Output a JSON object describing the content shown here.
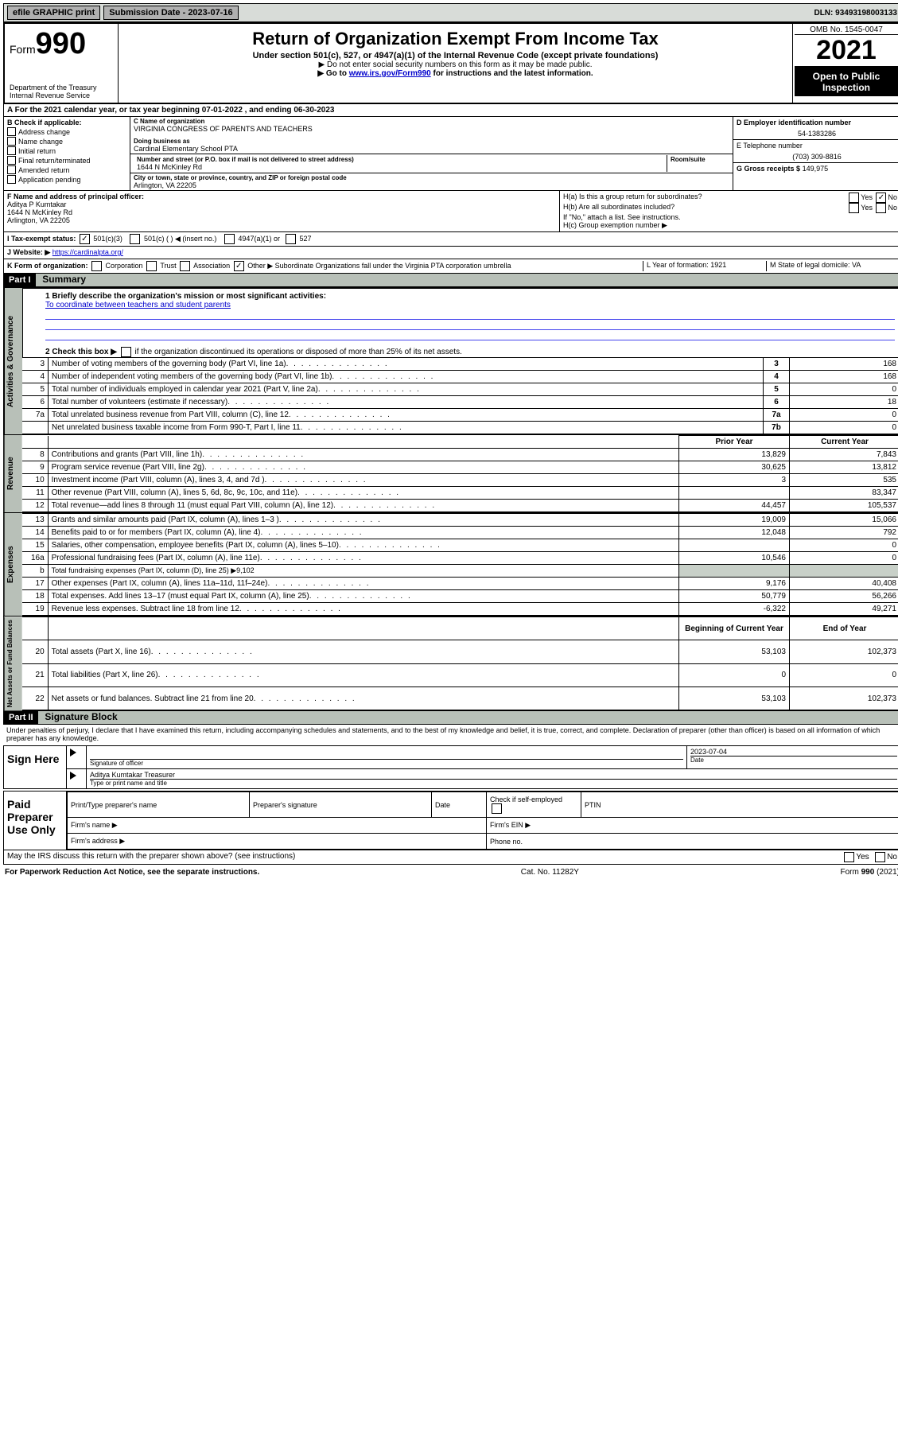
{
  "topbar": {
    "efile": "efile GRAPHIC print",
    "subdate_label": "Submission Date - 2023-07-16",
    "dln": "DLN: 93493198003133"
  },
  "header": {
    "form_word": "Form",
    "form_no": "990",
    "dept": "Department of the Treasury Internal Revenue Service",
    "title": "Return of Organization Exempt From Income Tax",
    "sub1": "Under section 501(c), 527, or 4947(a)(1) of the Internal Revenue Code (except private foundations)",
    "sub2": "▶ Do not enter social security numbers on this form as it may be made public.",
    "sub3_a": "▶ Go to ",
    "sub3_link": "www.irs.gov/Form990",
    "sub3_b": " for instructions and the latest information.",
    "omb": "OMB No. 1545-0047",
    "year": "2021",
    "pub": "Open to Public Inspection"
  },
  "rowA": "A For the 2021 calendar year, or tax year beginning 07-01-2022   , and ending 06-30-2023",
  "blockB": {
    "label": "B Check if applicable:",
    "opts": [
      "Address change",
      "Name change",
      "Initial return",
      "Final return/terminated",
      "Amended return",
      "Application pending"
    ],
    "c_label": "C Name of organization",
    "c_name": "VIRGINIA CONGRESS OF PARENTS AND TEACHERS",
    "dba_label": "Doing business as",
    "dba": "Cardinal Elementary School PTA",
    "addr_label": "Number and street (or P.O. box if mail is not delivered to street address)",
    "room": "Room/suite",
    "addr": "1644 N McKinley Rd",
    "city_label": "City or town, state or province, country, and ZIP or foreign postal code",
    "city": "Arlington, VA  22205",
    "d_label": "D Employer identification number",
    "d_val": "54-1383286",
    "e_label": "E Telephone number",
    "e_val": "(703) 309-8816",
    "g_label": "G Gross receipts $",
    "g_val": "149,975"
  },
  "rowF": {
    "f_label": "F Name and address of principal officer:",
    "f_name": "Aditya P Kumtakar",
    "f_addr": "1644 N McKinley Rd",
    "f_city": "Arlington, VA  22205",
    "ha": "H(a)  Is this a group return for subordinates?",
    "hb": "H(b)  Are all subordinates included?",
    "hb_note": "If \"No,\" attach a list. See instructions.",
    "hc": "H(c)  Group exemption number ▶",
    "yes": "Yes",
    "no": "No"
  },
  "rowI": {
    "label": "I    Tax-exempt status:",
    "o1": "501(c)(3)",
    "o2": "501(c) (  ) ◀ (insert no.)",
    "o3": "4947(a)(1) or",
    "o4": "527"
  },
  "rowJ": {
    "label": "J   Website: ▶",
    "url": "https://cardinalpta.org/"
  },
  "rowK": {
    "label": "K Form of organization:",
    "o1": "Corporation",
    "o2": "Trust",
    "o3": "Association",
    "o4": "Other ▶",
    "o4_desc": "Subordinate Organizations fall under the Virginia PTA corporation umbrella",
    "l": "L Year of formation: 1921",
    "m": "M State of legal domicile: VA"
  },
  "part1": {
    "hdr": "Part I",
    "title": "Summary",
    "q1": "1  Briefly describe the organization's mission or most significant activities:",
    "q1_ans": "To coordinate between teachers and student parents",
    "q2": "2   Check this box ▶",
    "q2b": "if the organization discontinued its operations or disposed of more than 25% of its net assets.",
    "rows_gov": [
      {
        "n": "3",
        "t": "Number of voting members of the governing body (Part VI, line 1a)",
        "l": "3",
        "v": "168"
      },
      {
        "n": "4",
        "t": "Number of independent voting members of the governing body (Part VI, line 1b)",
        "l": "4",
        "v": "168"
      },
      {
        "n": "5",
        "t": "Total number of individuals employed in calendar year 2021 (Part V, line 2a)",
        "l": "5",
        "v": "0"
      },
      {
        "n": "6",
        "t": "Total number of volunteers (estimate if necessary)",
        "l": "6",
        "v": "18"
      },
      {
        "n": "7a",
        "t": "Total unrelated business revenue from Part VIII, column (C), line 12",
        "l": "7a",
        "v": "0"
      },
      {
        "n": "",
        "t": "Net unrelated business taxable income from Form 990-T, Part I, line 11",
        "l": "7b",
        "v": "0"
      }
    ],
    "hdr_prior": "Prior Year",
    "hdr_curr": "Current Year",
    "tab_gov": "Activities & Governance",
    "tab_rev": "Revenue",
    "tab_exp": "Expenses",
    "tab_net": "Net Assets or Fund Balances",
    "rev": [
      {
        "n": "8",
        "t": "Contributions and grants (Part VIII, line 1h)",
        "p": "13,829",
        "c": "7,843"
      },
      {
        "n": "9",
        "t": "Program service revenue (Part VIII, line 2g)",
        "p": "30,625",
        "c": "13,812"
      },
      {
        "n": "10",
        "t": "Investment income (Part VIII, column (A), lines 3, 4, and 7d )",
        "p": "3",
        "c": "535"
      },
      {
        "n": "11",
        "t": "Other revenue (Part VIII, column (A), lines 5, 6d, 8c, 9c, 10c, and 11e)",
        "p": "",
        "c": "83,347"
      },
      {
        "n": "12",
        "t": "Total revenue—add lines 8 through 11 (must equal Part VIII, column (A), line 12)",
        "p": "44,457",
        "c": "105,537"
      }
    ],
    "exp": [
      {
        "n": "13",
        "t": "Grants and similar amounts paid (Part IX, column (A), lines 1–3 )",
        "p": "19,009",
        "c": "15,066"
      },
      {
        "n": "14",
        "t": "Benefits paid to or for members (Part IX, column (A), line 4)",
        "p": "12,048",
        "c": "792"
      },
      {
        "n": "15",
        "t": "Salaries, other compensation, employee benefits (Part IX, column (A), lines 5–10)",
        "p": "",
        "c": "0"
      },
      {
        "n": "16a",
        "t": "Professional fundraising fees (Part IX, column (A), line 11e)",
        "p": "10,546",
        "c": "0"
      },
      {
        "n": "b",
        "t": "Total fundraising expenses (Part IX, column (D), line 25) ▶9,102",
        "grey": true
      },
      {
        "n": "17",
        "t": "Other expenses (Part IX, column (A), lines 11a–11d, 11f–24e)",
        "p": "9,176",
        "c": "40,408"
      },
      {
        "n": "18",
        "t": "Total expenses. Add lines 13–17 (must equal Part IX, column (A), line 25)",
        "p": "50,779",
        "c": "56,266"
      },
      {
        "n": "19",
        "t": "Revenue less expenses. Subtract line 18 from line 12",
        "p": "-6,322",
        "c": "49,271"
      }
    ],
    "hdr_beg": "Beginning of Current Year",
    "hdr_end": "End of Year",
    "net": [
      {
        "n": "20",
        "t": "Total assets (Part X, line 16)",
        "p": "53,103",
        "c": "102,373"
      },
      {
        "n": "21",
        "t": "Total liabilities (Part X, line 26)",
        "p": "0",
        "c": "0"
      },
      {
        "n": "22",
        "t": "Net assets or fund balances. Subtract line 21 from line 20",
        "p": "53,103",
        "c": "102,373"
      }
    ]
  },
  "part2": {
    "hdr": "Part II",
    "title": "Signature Block",
    "decl": "Under penalties of perjury, I declare that I have examined this return, including accompanying schedules and statements, and to the best of my knowledge and belief, it is true, correct, and complete. Declaration of preparer (other than officer) is based on all information of which preparer has any knowledge.",
    "sign_here": "Sign Here",
    "sig_officer": "Signature of officer",
    "sig_date_lbl": "Date",
    "sig_date": "2023-07-04",
    "sig_name": "Aditya Kumtakar Treasurer",
    "sig_name_lbl": "Type or print name and title",
    "paid": "Paid Preparer Use Only",
    "p_name": "Print/Type preparer's name",
    "p_sig": "Preparer's signature",
    "p_date": "Date",
    "p_chk": "Check          if self-employed",
    "p_ptin": "PTIN",
    "p_firm": "Firm's name   ▶",
    "p_ein": "Firm's EIN ▶",
    "p_addr": "Firm's address ▶",
    "p_phone": "Phone no.",
    "discuss": "May the IRS discuss this return with the preparer shown above? (see instructions)"
  },
  "footer": {
    "pra": "For Paperwork Reduction Act Notice, see the separate instructions.",
    "cat": "Cat. No. 11282Y",
    "form": "Form 990 (2021)"
  }
}
